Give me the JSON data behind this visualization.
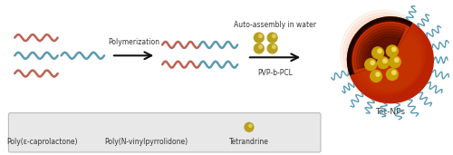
{
  "background_color": "#ffffff",
  "legend_box_color": "#e8e8e8",
  "red_wave_color": "#c06050",
  "blue_wave_color": "#5a9ab0",
  "gold_color": "#b8a020",
  "gold_highlight": "#e0cc60",
  "np_red_outer": "#bb2200",
  "np_red_mid": "#cc3300",
  "np_red_light": "#dd5500",
  "np_dark": "#1a0500",
  "arrow_color": "#111111",
  "text_color": "#333333",
  "polymerization_text": "Polymerization",
  "autoassembly_text": "Auto-assembly in water",
  "pvp_label": "PVP-b-PCL",
  "tetnp_label": "Tet-NPs",
  "legend_label1": "Poly(ε-caprolactone)",
  "legend_label2": "Poly(N-vinylpyrrolidone)",
  "legend_label3": "Tetrandrine",
  "figsize": [
    5.0,
    1.71
  ],
  "dpi": 100
}
